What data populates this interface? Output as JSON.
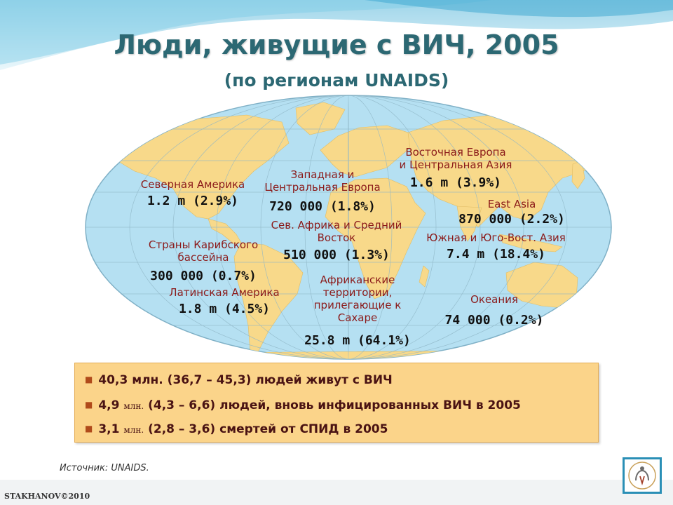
{
  "title": "Люди, живущие с ВИЧ, 2005",
  "subtitle": "(по регионам UNAIDS)",
  "regions": [
    {
      "name_lines": [
        "Северная Америка"
      ],
      "value": "1.2 m (2.9%)"
    },
    {
      "name_lines": [
        "Страны Карибского",
        "бассейна"
      ],
      "value": "300 000 (0.7%)"
    },
    {
      "name_lines": [
        "Латинская Америка"
      ],
      "value": "1.8 m (4.5%)"
    },
    {
      "name_lines": [
        "Западная и",
        "Центральная Европа"
      ],
      "value": "720 000 (1.8%)"
    },
    {
      "name_lines": [
        "Сев. Африка и Средний",
        "Восток"
      ],
      "value": "510 000 (1.3%)"
    },
    {
      "name_lines": [
        "Африканские",
        "территории,",
        "прилегающие к",
        "Сахаре"
      ],
      "value": "25.8 m (64.1%)"
    },
    {
      "name_lines": [
        "Восточная Европа",
        "и Центральная Азия"
      ],
      "value": "1.6 m (3.9%)"
    },
    {
      "name_lines": [
        "East Asia"
      ],
      "value": "870 000 (2.2%)"
    },
    {
      "name_lines": [
        "Южная и Юго-Вост. Азия"
      ],
      "value": "7.4 m (18.4%)"
    },
    {
      "name_lines": [
        "Океания"
      ],
      "value": "74 000 (0.2%)"
    }
  ],
  "summary": {
    "bullets": [
      {
        "pre": "40,3 млн. (36,7 – 45,3) людей живут с ВИЧ",
        "small": "",
        "post": ""
      },
      {
        "pre": "4,9 ",
        "small": "млн.",
        "post": " (4,3 – 6,6) людей, вновь инфицированных ВИЧ в 2005"
      },
      {
        "pre": "3,1 ",
        "small": "млн.",
        "post": " (2,8 – 3,6) смертей от СПИД в 2005"
      }
    ]
  },
  "source": "Источник: UNAIDS.",
  "credit": "STAKHANOV©2010",
  "colors": {
    "title": "#2c6873",
    "region_name": "#8b1a1a",
    "ocean": "#b5e0f2",
    "land": "#f8d98a",
    "summary_box": "#fbd48a",
    "logo_border": "#2a8fb6"
  },
  "logo_icon": "hand-figure-icon"
}
